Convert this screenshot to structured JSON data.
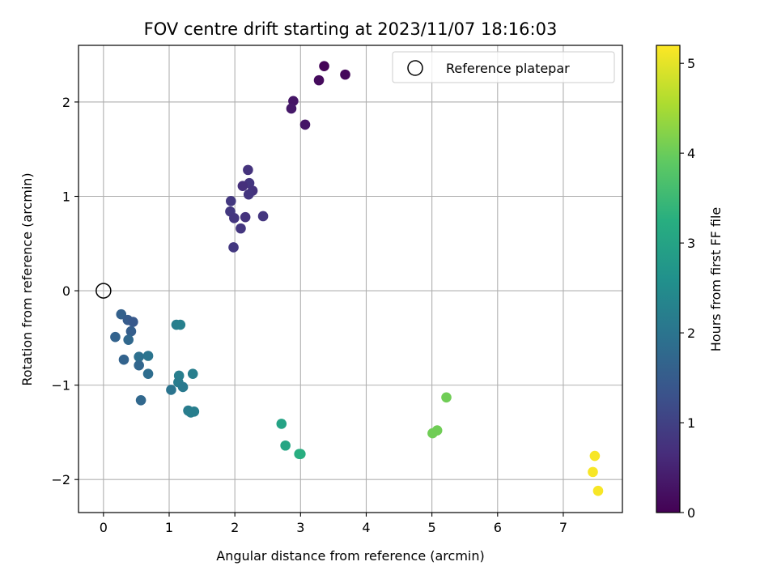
{
  "chart_data": {
    "type": "scatter",
    "title": "FOV centre drift starting at 2023/11/07 18:16:03",
    "xlabel": "Angular distance from reference (arcmin)",
    "ylabel": "Rotation from reference (arcmin)",
    "xlim": [
      -0.38,
      7.9
    ],
    "ylim": [
      -2.35,
      2.6
    ],
    "xticks": [
      0,
      1,
      2,
      3,
      4,
      5,
      6,
      7
    ],
    "yticks": [
      -2,
      -1,
      0,
      1,
      2
    ],
    "grid": true,
    "legend": {
      "placement": "upper-right",
      "entries": [
        "Reference platepar"
      ]
    },
    "reference_point": {
      "x": 0,
      "y": 0,
      "label": "Reference platepar"
    },
    "colorbar": {
      "label": "Hours from first FF file",
      "colormap": "viridis",
      "range": [
        0,
        5.2
      ],
      "ticks": [
        0,
        1,
        2,
        3,
        4,
        5
      ]
    },
    "series": [
      {
        "points": [
          {
            "x": 3.36,
            "y": 2.38,
            "t": 0.05
          },
          {
            "x": 3.68,
            "y": 2.29,
            "t": 0.1
          },
          {
            "x": 3.28,
            "y": 2.23,
            "t": 0.15
          },
          {
            "x": 2.89,
            "y": 2.01,
            "t": 0.3
          },
          {
            "x": 2.86,
            "y": 1.93,
            "t": 0.35
          },
          {
            "x": 3.07,
            "y": 1.76,
            "t": 0.3
          },
          {
            "x": 2.2,
            "y": 1.28,
            "t": 0.75
          },
          {
            "x": 2.22,
            "y": 1.14,
            "t": 0.8
          },
          {
            "x": 2.12,
            "y": 1.11,
            "t": 0.7
          },
          {
            "x": 2.27,
            "y": 1.06,
            "t": 0.75
          },
          {
            "x": 2.21,
            "y": 1.02,
            "t": 0.8
          },
          {
            "x": 1.94,
            "y": 0.95,
            "t": 0.85
          },
          {
            "x": 1.93,
            "y": 0.84,
            "t": 0.85
          },
          {
            "x": 1.99,
            "y": 0.77,
            "t": 0.8
          },
          {
            "x": 2.16,
            "y": 0.78,
            "t": 0.75
          },
          {
            "x": 2.43,
            "y": 0.79,
            "t": 0.8
          },
          {
            "x": 2.09,
            "y": 0.66,
            "t": 0.8
          },
          {
            "x": 1.98,
            "y": 0.46,
            "t": 0.85
          },
          {
            "x": 0.27,
            "y": -0.25,
            "t": 1.6
          },
          {
            "x": 0.37,
            "y": -0.31,
            "t": 1.5
          },
          {
            "x": 0.45,
            "y": -0.33,
            "t": 1.45
          },
          {
            "x": 0.42,
            "y": -0.43,
            "t": 1.55
          },
          {
            "x": 0.18,
            "y": -0.49,
            "t": 1.65
          },
          {
            "x": 0.38,
            "y": -0.52,
            "t": 1.75
          },
          {
            "x": 0.31,
            "y": -0.73,
            "t": 1.65
          },
          {
            "x": 0.54,
            "y": -0.7,
            "t": 1.9
          },
          {
            "x": 0.68,
            "y": -0.69,
            "t": 2.0
          },
          {
            "x": 0.54,
            "y": -0.79,
            "t": 1.7
          },
          {
            "x": 0.68,
            "y": -0.88,
            "t": 1.85
          },
          {
            "x": 0.57,
            "y": -1.16,
            "t": 1.75
          },
          {
            "x": 1.11,
            "y": -0.36,
            "t": 2.2
          },
          {
            "x": 1.17,
            "y": -0.36,
            "t": 2.25
          },
          {
            "x": 1.15,
            "y": -0.9,
            "t": 2.2
          },
          {
            "x": 1.14,
            "y": -0.97,
            "t": 2.15
          },
          {
            "x": 1.36,
            "y": -0.88,
            "t": 2.2
          },
          {
            "x": 1.21,
            "y": -1.02,
            "t": 2.1
          },
          {
            "x": 1.03,
            "y": -1.05,
            "t": 2.0
          },
          {
            "x": 1.29,
            "y": -1.27,
            "t": 2.15
          },
          {
            "x": 1.33,
            "y": -1.29,
            "t": 2.2
          },
          {
            "x": 1.38,
            "y": -1.28,
            "t": 2.2
          },
          {
            "x": 2.71,
            "y": -1.41,
            "t": 3.0
          },
          {
            "x": 2.77,
            "y": -1.64,
            "t": 3.05
          },
          {
            "x": 2.98,
            "y": -1.73,
            "t": 3.2
          },
          {
            "x": 3.0,
            "y": -1.73,
            "t": 3.25
          },
          {
            "x": 5.22,
            "y": -1.13,
            "t": 4.05
          },
          {
            "x": 5.08,
            "y": -1.48,
            "t": 4.05
          },
          {
            "x": 5.01,
            "y": -1.51,
            "t": 4.05
          },
          {
            "x": 7.48,
            "y": -1.75,
            "t": 5.15
          },
          {
            "x": 7.45,
            "y": -1.92,
            "t": 5.15
          },
          {
            "x": 7.53,
            "y": -2.12,
            "t": 5.15
          }
        ]
      }
    ]
  }
}
